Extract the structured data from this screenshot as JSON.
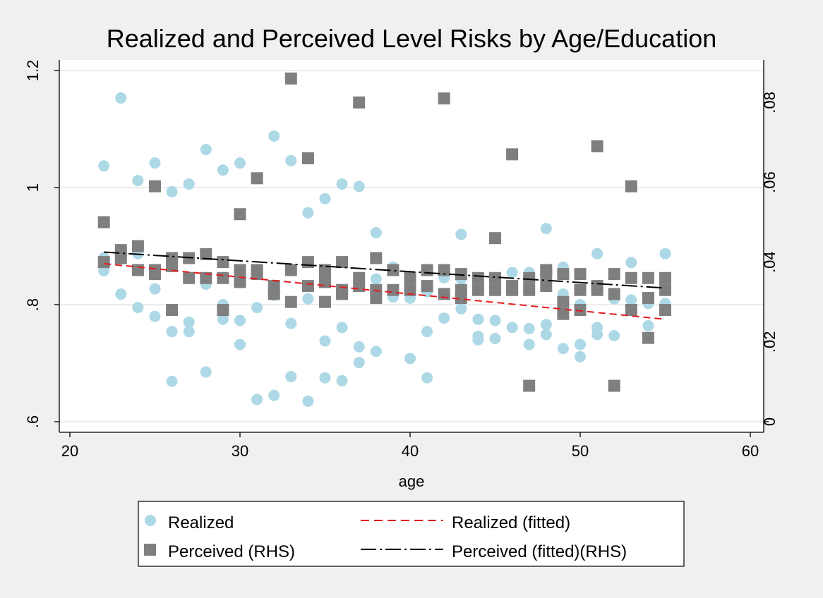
{
  "chart_data": {
    "type": "scatter",
    "title": "Realized and Perceived Level Risks by Age/Education",
    "xlabel": "age",
    "ylabel": "",
    "ylabel_right": "",
    "xlim": [
      20,
      60
    ],
    "ylim": [
      0.6,
      1.2
    ],
    "ylim_right": [
      0,
      0.088
    ],
    "x_ticks": [
      20,
      30,
      40,
      50,
      60
    ],
    "x_tick_labels": [
      "20",
      "30",
      "40",
      "50",
      "60"
    ],
    "y_ticks": [
      0.6,
      0.8,
      1.0,
      1.2
    ],
    "y_tick_labels": [
      ".6",
      ".8",
      "1",
      "1.2"
    ],
    "y_right_ticks": [
      0,
      0.02,
      0.04,
      0.06,
      0.08
    ],
    "y_right_tick_labels": [
      "0",
      ".02",
      ".04",
      ".06",
      ".08"
    ],
    "grid": true,
    "legend_position": "bottom",
    "colors": {
      "realized": "#add8e6",
      "perceived": "#7f7f7f",
      "realized_fit": "#e41a1c",
      "perceived_fit": "#000000",
      "plot_bg": "#ffffff",
      "outer_bg": "#f0f0f0",
      "grid": "#e6e6e6"
    },
    "series": [
      {
        "name": "Realized",
        "axis": "left",
        "marker": "circle",
        "points": [
          [
            22,
            1.037
          ],
          [
            22,
            0.858
          ],
          [
            22,
            0.88
          ],
          [
            23,
            1.153
          ],
          [
            23,
            0.818
          ],
          [
            23,
            0.878
          ],
          [
            24,
            1.012
          ],
          [
            24,
            0.795
          ],
          [
            24,
            0.887
          ],
          [
            25,
            1.042
          ],
          [
            25,
            0.827
          ],
          [
            25,
            0.78
          ],
          [
            26,
            0.993
          ],
          [
            26,
            0.754
          ],
          [
            26,
            0.669
          ],
          [
            27,
            1.006
          ],
          [
            27,
            0.77
          ],
          [
            27,
            0.754
          ],
          [
            28,
            1.065
          ],
          [
            28,
            0.685
          ],
          [
            28,
            0.835
          ],
          [
            29,
            1.03
          ],
          [
            29,
            0.8
          ],
          [
            29,
            0.775
          ],
          [
            30,
            1.042
          ],
          [
            30,
            0.773
          ],
          [
            30,
            0.732
          ],
          [
            31,
            0.795
          ],
          [
            31,
            0.638
          ],
          [
            32,
            1.088
          ],
          [
            32,
            0.645
          ],
          [
            32,
            0.816
          ],
          [
            33,
            1.046
          ],
          [
            33,
            0.768
          ],
          [
            33,
            0.677
          ],
          [
            34,
            0.957
          ],
          [
            34,
            0.81
          ],
          [
            34,
            0.635
          ],
          [
            35,
            0.981
          ],
          [
            35,
            0.738
          ],
          [
            35,
            0.675
          ],
          [
            36,
            1.006
          ],
          [
            36,
            0.761
          ],
          [
            36,
            0.67
          ],
          [
            37,
            1.002
          ],
          [
            37,
            0.728
          ],
          [
            37,
            0.701
          ],
          [
            38,
            0.923
          ],
          [
            38,
            0.72
          ],
          [
            38,
            0.844
          ],
          [
            39,
            0.864
          ],
          [
            39,
            0.813
          ],
          [
            40,
            0.811
          ],
          [
            40,
            0.708
          ],
          [
            41,
            0.754
          ],
          [
            41,
            0.675
          ],
          [
            41,
            0.822
          ],
          [
            42,
            0.777
          ],
          [
            42,
            0.846
          ],
          [
            43,
            0.92
          ],
          [
            43,
            0.793
          ],
          [
            43,
            0.844
          ],
          [
            44,
            0.775
          ],
          [
            44,
            0.746
          ],
          [
            44,
            0.74
          ],
          [
            45,
            0.773
          ],
          [
            45,
            0.742
          ],
          [
            45,
            0.846
          ],
          [
            46,
            0.761
          ],
          [
            46,
            0.855
          ],
          [
            47,
            0.759
          ],
          [
            47,
            0.732
          ],
          [
            47,
            0.855
          ],
          [
            48,
            0.93
          ],
          [
            48,
            0.766
          ],
          [
            48,
            0.749
          ],
          [
            49,
            0.864
          ],
          [
            49,
            0.818
          ],
          [
            49,
            0.725
          ],
          [
            50,
            0.732
          ],
          [
            50,
            0.711
          ],
          [
            50,
            0.8
          ],
          [
            51,
            0.887
          ],
          [
            51,
            0.761
          ],
          [
            51,
            0.749
          ],
          [
            52,
            0.81
          ],
          [
            52,
            0.747
          ],
          [
            53,
            0.872
          ],
          [
            53,
            0.808
          ],
          [
            54,
            0.802
          ],
          [
            54,
            0.764
          ],
          [
            55,
            0.887
          ],
          [
            55,
            0.802
          ]
        ]
      },
      {
        "name": "Perceived (RHS)",
        "axis": "right",
        "marker": "square",
        "points": [
          [
            22,
            0.05
          ],
          [
            22,
            0.04
          ],
          [
            23,
            0.043
          ],
          [
            23,
            0.041
          ],
          [
            24,
            0.044
          ],
          [
            24,
            0.038
          ],
          [
            25,
            0.059
          ],
          [
            25,
            0.038
          ],
          [
            25,
            0.037
          ],
          [
            26,
            0.041
          ],
          [
            26,
            0.039
          ],
          [
            26,
            0.028
          ],
          [
            26,
            0.04
          ],
          [
            27,
            0.041
          ],
          [
            27,
            0.036
          ],
          [
            28,
            0.042
          ],
          [
            28,
            0.036
          ],
          [
            29,
            0.04
          ],
          [
            29,
            0.036
          ],
          [
            29,
            0.028
          ],
          [
            30,
            0.052
          ],
          [
            30,
            0.038
          ],
          [
            30,
            0.035
          ],
          [
            31,
            0.061
          ],
          [
            31,
            0.038
          ],
          [
            31,
            0.037
          ],
          [
            32,
            0.034
          ],
          [
            32,
            0.032
          ],
          [
            33,
            0.086
          ],
          [
            33,
            0.038
          ],
          [
            33,
            0.03
          ],
          [
            34,
            0.066
          ],
          [
            34,
            0.04
          ],
          [
            34,
            0.034
          ],
          [
            35,
            0.038
          ],
          [
            35,
            0.035
          ],
          [
            35,
            0.03
          ],
          [
            36,
            0.04
          ],
          [
            36,
            0.033
          ],
          [
            36,
            0.032
          ],
          [
            37,
            0.08
          ],
          [
            37,
            0.036
          ],
          [
            37,
            0.034
          ],
          [
            38,
            0.041
          ],
          [
            38,
            0.033
          ],
          [
            38,
            0.031
          ],
          [
            39,
            0.038
          ],
          [
            39,
            0.033
          ],
          [
            40,
            0.036
          ],
          [
            40,
            0.033
          ],
          [
            41,
            0.038
          ],
          [
            41,
            0.034
          ],
          [
            42,
            0.081
          ],
          [
            42,
            0.038
          ],
          [
            42,
            0.032
          ],
          [
            43,
            0.037
          ],
          [
            43,
            0.033
          ],
          [
            43,
            0.031
          ],
          [
            44,
            0.036
          ],
          [
            44,
            0.033
          ],
          [
            45,
            0.046
          ],
          [
            45,
            0.036
          ],
          [
            45,
            0.033
          ],
          [
            46,
            0.067
          ],
          [
            46,
            0.034
          ],
          [
            46,
            0.033
          ],
          [
            47,
            0.036
          ],
          [
            47,
            0.033
          ],
          [
            47,
            0.009
          ],
          [
            48,
            0.038
          ],
          [
            48,
            0.037
          ],
          [
            48,
            0.034
          ],
          [
            49,
            0.037
          ],
          [
            49,
            0.03
          ],
          [
            49,
            0.027
          ],
          [
            50,
            0.037
          ],
          [
            50,
            0.033
          ],
          [
            50,
            0.028
          ],
          [
            51,
            0.069
          ],
          [
            51,
            0.034
          ],
          [
            51,
            0.033
          ],
          [
            52,
            0.037
          ],
          [
            52,
            0.032
          ],
          [
            52,
            0.009
          ],
          [
            53,
            0.059
          ],
          [
            53,
            0.036
          ],
          [
            53,
            0.028
          ],
          [
            54,
            0.036
          ],
          [
            54,
            0.031
          ],
          [
            54,
            0.021
          ],
          [
            55,
            0.036
          ],
          [
            55,
            0.033
          ],
          [
            55,
            0.028
          ]
        ]
      },
      {
        "name": "Realized (fitted)",
        "axis": "left",
        "type": "line",
        "style": "dashed",
        "points": [
          [
            22,
            0.87
          ],
          [
            55,
            0.775
          ]
        ]
      },
      {
        "name": "Perceived (fitted)(RHS)",
        "axis": "right",
        "type": "line",
        "style": "dash-dot",
        "points": [
          [
            22,
            0.0425
          ],
          [
            55,
            0.0335
          ]
        ]
      }
    ]
  },
  "legend": {
    "items": [
      "Realized",
      "Realized (fitted)",
      "Perceived (RHS)",
      "Perceived (fitted)(RHS)"
    ]
  }
}
